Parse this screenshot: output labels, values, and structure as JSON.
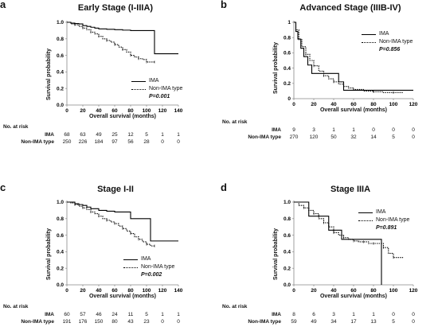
{
  "common": {
    "ylabel": "Survival probability",
    "xlabel": "Overall survival (months)",
    "at_risk_label": "No. at risk",
    "group_ima": "IMA",
    "group_non": "Non-IMA type",
    "legend_ima": "IMA",
    "legend_non": "Non-IMA type"
  },
  "chart_data": [
    {
      "id": "a",
      "letter": "a",
      "type": "line",
      "title": "Early Stage (I-IIIA)",
      "xlabel": "Overall survival (months)",
      "ylabel": "Survival probability",
      "xlim": [
        0,
        140
      ],
      "ylim": [
        0,
        1
      ],
      "xticks": [
        0,
        20,
        40,
        60,
        80,
        100,
        120,
        140
      ],
      "yticks": [
        0.0,
        0.2,
        0.4,
        0.6,
        0.8,
        1.0
      ],
      "ytick_labels": [
        "0.0",
        "0.2",
        "0.4",
        "0.6",
        "0.8",
        "1.0"
      ],
      "p_value": "P=0.001",
      "series": [
        {
          "name": "IMA",
          "style": "solid",
          "x": [
            0,
            5,
            10,
            15,
            20,
            25,
            30,
            35,
            40,
            50,
            60,
            70,
            80,
            90,
            100,
            108,
            110,
            140
          ],
          "y": [
            1.0,
            0.99,
            0.985,
            0.98,
            0.96,
            0.95,
            0.94,
            0.93,
            0.92,
            0.915,
            0.91,
            0.905,
            0.9,
            0.9,
            0.9,
            0.9,
            0.62,
            0.62
          ]
        },
        {
          "name": "Non-IMA type",
          "style": "dotted",
          "x": [
            0,
            5,
            10,
            15,
            20,
            25,
            30,
            35,
            40,
            45,
            50,
            55,
            60,
            65,
            70,
            75,
            80,
            85,
            90,
            95,
            100,
            105,
            110
          ],
          "y": [
            1.0,
            0.98,
            0.97,
            0.95,
            0.93,
            0.91,
            0.88,
            0.86,
            0.83,
            0.8,
            0.78,
            0.76,
            0.73,
            0.7,
            0.67,
            0.64,
            0.6,
            0.58,
            0.56,
            0.55,
            0.52,
            0.52,
            0.52
          ]
        }
      ],
      "at_risk": {
        "x": [
          0,
          20,
          40,
          60,
          80,
          100,
          120,
          140
        ],
        "IMA": [
          "68",
          "63",
          "49",
          "25",
          "12",
          "5",
          "1",
          "1"
        ],
        "Non-IMA type": [
          "250",
          "226",
          "184",
          "97",
          "56",
          "28",
          "0",
          "0"
        ]
      }
    },
    {
      "id": "b",
      "letter": "b",
      "type": "line",
      "title": "Advanced Stage (IIIB-IV)",
      "xlabel": "Overall survival (months)",
      "ylabel": "Survival probability",
      "xlim": [
        0,
        120
      ],
      "ylim": [
        0,
        1
      ],
      "xticks": [
        0,
        20,
        40,
        60,
        80,
        100,
        120
      ],
      "yticks": [
        0.0,
        0.2,
        0.4,
        0.6,
        0.8,
        1.0
      ],
      "ytick_labels": [
        "0",
        "0.2",
        "0.4",
        "0.6",
        "0.8",
        "1"
      ],
      "p_value": "P=0.856",
      "series": [
        {
          "name": "IMA",
          "style": "solid",
          "x": [
            0,
            2,
            4,
            7,
            10,
            14,
            18,
            30,
            45,
            50,
            60,
            120
          ],
          "y": [
            1.0,
            0.88,
            0.78,
            0.66,
            0.55,
            0.44,
            0.33,
            0.33,
            0.22,
            0.11,
            0.11,
            0.11
          ]
        },
        {
          "name": "Non-IMA type",
          "style": "dotted",
          "x": [
            0,
            2,
            5,
            8,
            12,
            16,
            20,
            25,
            30,
            35,
            40,
            45,
            50,
            55,
            60,
            70,
            80,
            90,
            100,
            110
          ],
          "y": [
            1.0,
            0.9,
            0.78,
            0.68,
            0.58,
            0.5,
            0.43,
            0.36,
            0.3,
            0.26,
            0.22,
            0.19,
            0.16,
            0.14,
            0.12,
            0.1,
            0.09,
            0.08,
            0.08,
            0.08
          ]
        }
      ],
      "at_risk": {
        "x": [
          0,
          20,
          40,
          60,
          80,
          100,
          120
        ],
        "IMA": [
          "9",
          "3",
          "1",
          "1",
          "0",
          "0",
          "0"
        ],
        "Non-IMA type": [
          "270",
          "120",
          "50",
          "32",
          "14",
          "5",
          "0"
        ]
      }
    },
    {
      "id": "c",
      "letter": "c",
      "type": "line",
      "title": "Stage I-II",
      "xlabel": "Overall survival (months)",
      "ylabel": "Survival probability",
      "xlim": [
        0,
        140
      ],
      "ylim": [
        0,
        1
      ],
      "xticks": [
        0,
        20,
        40,
        60,
        80,
        100,
        120,
        140
      ],
      "yticks": [
        0.0,
        0.2,
        0.4,
        0.6,
        0.8,
        1.0
      ],
      "ytick_labels": [
        "0.0",
        "0.2",
        "0.4",
        "0.6",
        "0.8",
        "1.0"
      ],
      "p_value": "P=0.002",
      "series": [
        {
          "name": "IMA",
          "style": "solid",
          "x": [
            0,
            5,
            10,
            15,
            20,
            25,
            30,
            40,
            50,
            60,
            70,
            80,
            90,
            100,
            105,
            110,
            140
          ],
          "y": [
            1.0,
            1.0,
            0.98,
            0.97,
            0.96,
            0.94,
            0.92,
            0.9,
            0.89,
            0.88,
            0.88,
            0.8,
            0.8,
            0.8,
            0.53,
            0.53,
            0.53
          ]
        },
        {
          "name": "Non-IMA type",
          "style": "dotted",
          "x": [
            0,
            5,
            10,
            15,
            20,
            25,
            30,
            35,
            40,
            45,
            50,
            55,
            60,
            65,
            70,
            75,
            80,
            85,
            90,
            95,
            100,
            105,
            110
          ],
          "y": [
            1.0,
            0.99,
            0.97,
            0.95,
            0.93,
            0.91,
            0.88,
            0.86,
            0.83,
            0.8,
            0.78,
            0.76,
            0.74,
            0.71,
            0.68,
            0.65,
            0.62,
            0.58,
            0.55,
            0.52,
            0.49,
            0.47,
            0.47
          ]
        }
      ],
      "at_risk": {
        "x": [
          0,
          20,
          40,
          60,
          80,
          100,
          120,
          140
        ],
        "IMA": [
          "60",
          "57",
          "46",
          "24",
          "11",
          "5",
          "1",
          "1"
        ],
        "Non-IMA type": [
          "191",
          "176",
          "150",
          "80",
          "43",
          "23",
          "0",
          "0"
        ]
      }
    },
    {
      "id": "d",
      "letter": "d",
      "type": "line",
      "title": "Stage IIIA",
      "xlabel": "Overall survival (months)",
      "ylabel": "Survival probability",
      "xlim": [
        0,
        120
      ],
      "ylim": [
        0,
        1
      ],
      "xticks": [
        0,
        20,
        40,
        60,
        80,
        100,
        120
      ],
      "yticks": [
        0.0,
        0.2,
        0.4,
        0.6,
        0.8,
        1.0
      ],
      "ytick_labels": [
        "0.0",
        "0.2",
        "0.4",
        "0.6",
        "0.8",
        "1.0"
      ],
      "p_value": "P=0.891",
      "series": [
        {
          "name": "IMA",
          "style": "solid",
          "x": [
            0,
            10,
            15,
            20,
            28,
            35,
            48,
            88,
            88
          ],
          "y": [
            1.0,
            1.0,
            0.83,
            0.83,
            0.83,
            0.66,
            0.55,
            0.55,
            0.0
          ]
        },
        {
          "name": "Non-IMA type",
          "style": "dotted",
          "x": [
            0,
            5,
            10,
            15,
            20,
            25,
            30,
            35,
            40,
            45,
            50,
            55,
            60,
            65,
            70,
            75,
            80,
            85,
            90,
            95,
            100,
            110
          ],
          "y": [
            1.0,
            0.96,
            0.93,
            0.9,
            0.86,
            0.8,
            0.75,
            0.7,
            0.63,
            0.6,
            0.57,
            0.55,
            0.53,
            0.52,
            0.52,
            0.5,
            0.5,
            0.5,
            0.45,
            0.38,
            0.33,
            0.33
          ]
        }
      ],
      "at_risk": {
        "x": [
          0,
          20,
          40,
          60,
          80,
          100,
          120
        ],
        "IMA": [
          "8",
          "6",
          "3",
          "1",
          "1",
          "0",
          "0"
        ],
        "Non-IMA type": [
          "59",
          "49",
          "34",
          "17",
          "13",
          "5",
          "0"
        ]
      }
    }
  ]
}
